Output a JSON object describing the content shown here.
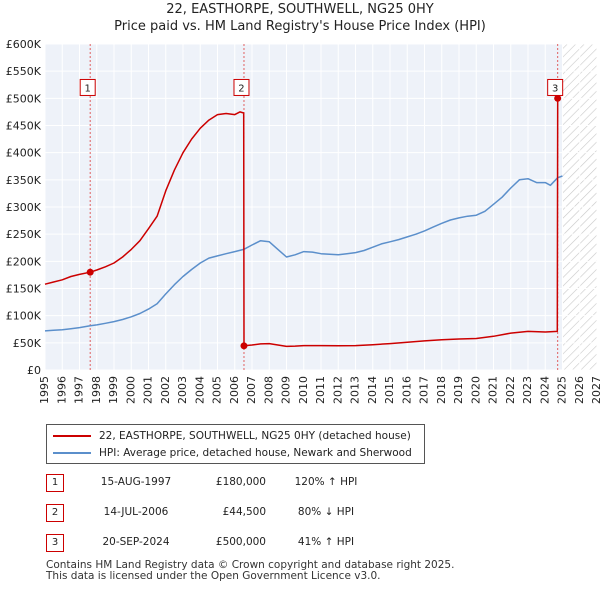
{
  "title": "22, EASTHORPE, SOUTHWELL, NG25 0HY",
  "subtitle": "Price paid vs. HM Land Registry's House Price Index (HPI)",
  "chart_data": {
    "type": "line",
    "xlim": [
      1995,
      2027
    ],
    "ylim": [
      0,
      600000
    ],
    "yticks": [
      0,
      50000,
      100000,
      150000,
      200000,
      250000,
      300000,
      350000,
      400000,
      450000,
      500000,
      550000,
      600000
    ],
    "ytick_labels": [
      "£0",
      "£50K",
      "£100K",
      "£150K",
      "£200K",
      "£250K",
      "£300K",
      "£350K",
      "£400K",
      "£450K",
      "£500K",
      "£550K",
      "£600K"
    ],
    "xticks": [
      1995,
      1996,
      1997,
      1998,
      1999,
      2000,
      2001,
      2002,
      2003,
      2004,
      2005,
      2006,
      2007,
      2008,
      2009,
      2010,
      2011,
      2012,
      2013,
      2014,
      2015,
      2016,
      2017,
      2018,
      2019,
      2020,
      2021,
      2022,
      2023,
      2024,
      2025,
      2026,
      2027
    ],
    "forecast_start": 2025,
    "series": [
      {
        "name": "22, EASTHORPE, SOUTHWELL, NG25 0HY (detached house)",
        "color": "#cc0000",
        "points": [
          [
            1995.0,
            158000
          ],
          [
            1995.5,
            162000
          ],
          [
            1996.0,
            166000
          ],
          [
            1996.5,
            172000
          ],
          [
            1997.0,
            176000
          ],
          [
            1997.62,
            180000
          ],
          [
            1998.0,
            184000
          ],
          [
            1998.5,
            190000
          ],
          [
            1999.0,
            197000
          ],
          [
            1999.5,
            208000
          ],
          [
            2000.0,
            222000
          ],
          [
            2000.5,
            238000
          ],
          [
            2001.0,
            260000
          ],
          [
            2001.5,
            283000
          ],
          [
            2002.0,
            330000
          ],
          [
            2002.5,
            368000
          ],
          [
            2003.0,
            400000
          ],
          [
            2003.5,
            425000
          ],
          [
            2004.0,
            445000
          ],
          [
            2004.5,
            460000
          ],
          [
            2005.0,
            470000
          ],
          [
            2005.5,
            472000
          ],
          [
            2006.0,
            470000
          ],
          [
            2006.3,
            475000
          ],
          [
            2006.52,
            473000
          ],
          [
            2006.535,
            44500
          ],
          [
            2007.0,
            46000
          ],
          [
            2007.5,
            48000
          ],
          [
            2008.0,
            48500
          ],
          [
            2008.5,
            46000
          ],
          [
            2009.0,
            43500
          ],
          [
            2009.5,
            44000
          ],
          [
            2010.0,
            45000
          ],
          [
            2011.0,
            45000
          ],
          [
            2012.0,
            44500
          ],
          [
            2013.0,
            45000
          ],
          [
            2014.0,
            46500
          ],
          [
            2015.0,
            48500
          ],
          [
            2016.0,
            51000
          ],
          [
            2017.0,
            53500
          ],
          [
            2018.0,
            55500
          ],
          [
            2019.0,
            57000
          ],
          [
            2020.0,
            58000
          ],
          [
            2021.0,
            62000
          ],
          [
            2022.0,
            68000
          ],
          [
            2023.0,
            71000
          ],
          [
            2024.0,
            70000
          ],
          [
            2024.7,
            71000
          ],
          [
            2024.72,
            500000
          ]
        ]
      },
      {
        "name": "HPI: Average price, detached house, Newark and Sherwood",
        "color": "#5b8fcb",
        "points": [
          [
            1995.0,
            72000
          ],
          [
            1995.5,
            73000
          ],
          [
            1996.0,
            74000
          ],
          [
            1996.5,
            76000
          ],
          [
            1997.0,
            78000
          ],
          [
            1997.62,
            81500
          ],
          [
            1998.0,
            83000
          ],
          [
            1998.5,
            86000
          ],
          [
            1999.0,
            89000
          ],
          [
            1999.5,
            93000
          ],
          [
            2000.0,
            98000
          ],
          [
            2000.5,
            104000
          ],
          [
            2001.0,
            112000
          ],
          [
            2001.5,
            122000
          ],
          [
            2002.0,
            140000
          ],
          [
            2002.5,
            157000
          ],
          [
            2003.0,
            172000
          ],
          [
            2003.5,
            185000
          ],
          [
            2004.0,
            197000
          ],
          [
            2004.5,
            206000
          ],
          [
            2005.0,
            210000
          ],
          [
            2005.5,
            214000
          ],
          [
            2006.0,
            218000
          ],
          [
            2006.52,
            222000
          ],
          [
            2007.0,
            230000
          ],
          [
            2007.5,
            238000
          ],
          [
            2008.0,
            236000
          ],
          [
            2008.5,
            222000
          ],
          [
            2009.0,
            208000
          ],
          [
            2009.5,
            212000
          ],
          [
            2010.0,
            218000
          ],
          [
            2010.5,
            217000
          ],
          [
            2011.0,
            214000
          ],
          [
            2011.5,
            213000
          ],
          [
            2012.0,
            212000
          ],
          [
            2012.5,
            214000
          ],
          [
            2013.0,
            216000
          ],
          [
            2013.5,
            220000
          ],
          [
            2014.0,
            226000
          ],
          [
            2014.5,
            232000
          ],
          [
            2015.0,
            236000
          ],
          [
            2015.5,
            240000
          ],
          [
            2016.0,
            245000
          ],
          [
            2016.5,
            250000
          ],
          [
            2017.0,
            256000
          ],
          [
            2017.5,
            263000
          ],
          [
            2018.0,
            270000
          ],
          [
            2018.5,
            276000
          ],
          [
            2019.0,
            280000
          ],
          [
            2019.5,
            283000
          ],
          [
            2020.0,
            285000
          ],
          [
            2020.5,
            292000
          ],
          [
            2021.0,
            305000
          ],
          [
            2021.5,
            318000
          ],
          [
            2022.0,
            335000
          ],
          [
            2022.5,
            350000
          ],
          [
            2023.0,
            352000
          ],
          [
            2023.5,
            345000
          ],
          [
            2024.0,
            345000
          ],
          [
            2024.3,
            340000
          ],
          [
            2024.72,
            354000
          ],
          [
            2025.0,
            357000
          ]
        ]
      }
    ],
    "sales": [
      {
        "label": "1",
        "x": 1997.62,
        "y": 180000,
        "date": "15-AUG-1997",
        "price": "£180,000",
        "hpi": "120% ↑ HPI"
      },
      {
        "label": "2",
        "x": 2006.535,
        "y": 44500,
        "date": "14-JUL-2006",
        "price": "£44,500",
        "hpi": "80% ↓ HPI"
      },
      {
        "label": "3",
        "x": 2024.72,
        "y": 500000,
        "date": "20-SEP-2024",
        "price": "£500,000",
        "hpi": "41% ↑ HPI"
      }
    ]
  },
  "legend": {
    "property": "22, EASTHORPE, SOUTHWELL, NG25 0HY (detached house)",
    "hpi": "HPI: Average price, detached house, Newark and Sherwood"
  },
  "footer": {
    "line1": "Contains HM Land Registry data © Crown copyright and database right 2025.",
    "line2": "This data is licensed under the Open Government Licence v3.0."
  }
}
